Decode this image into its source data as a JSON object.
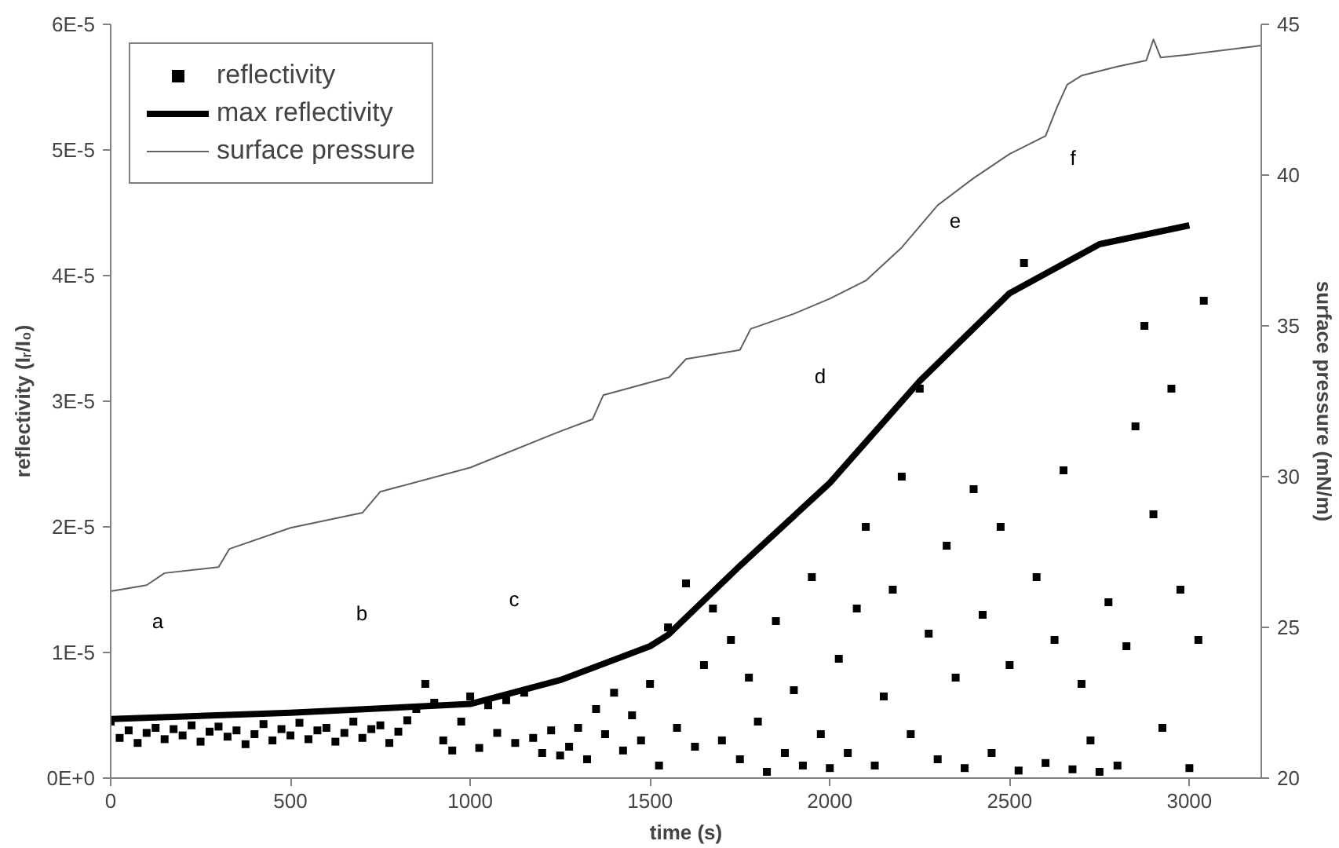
{
  "chart_data": {
    "type": "scatter",
    "xlabel": "time (s)",
    "ylabel": "reflectivity (Iᵣ/I₀)",
    "y2label": "surface pressure (mN/m)",
    "xlim": [
      0,
      3200
    ],
    "xticks": [
      0,
      500,
      1000,
      1500,
      2000,
      2500,
      3000
    ],
    "ylim": [
      0,
      6e-05
    ],
    "yticks": [
      {
        "value": 0,
        "label": "0E+0"
      },
      {
        "value": 1e-05,
        "label": "1E-5"
      },
      {
        "value": 2e-05,
        "label": "2E-5"
      },
      {
        "value": 3e-05,
        "label": "3E-5"
      },
      {
        "value": 4e-05,
        "label": "4E-5"
      },
      {
        "value": 5e-05,
        "label": "5E-5"
      },
      {
        "value": 6e-05,
        "label": "6E-5"
      }
    ],
    "y2lim": [
      20,
      45
    ],
    "y2ticks": [
      20,
      25,
      30,
      35,
      40,
      45
    ],
    "grid": false,
    "legend": "top left",
    "series": [
      {
        "name": "reflectivity",
        "marker": "square",
        "color": "#000000",
        "x": [
          0,
          25,
          50,
          75,
          100,
          125,
          150,
          175,
          200,
          225,
          250,
          275,
          300,
          325,
          350,
          375,
          400,
          425,
          450,
          475,
          500,
          525,
          550,
          575,
          600,
          625,
          650,
          675,
          700,
          725,
          750,
          775,
          800,
          825,
          850,
          875,
          900,
          925,
          950,
          975,
          1000,
          1025,
          1050,
          1075,
          1100,
          1125,
          1150,
          1175,
          1200,
          1225,
          1250,
          1275,
          1300,
          1325,
          1350,
          1375,
          1400,
          1425,
          1450,
          1475,
          1500,
          1525,
          1550,
          1575,
          1600,
          1625,
          1650,
          1675,
          1700,
          1725,
          1750,
          1775,
          1800,
          1825,
          1850,
          1875,
          1900,
          1925,
          1950,
          1975,
          2000,
          2025,
          2050,
          2075,
          2100,
          2125,
          2150,
          2175,
          2200,
          2225,
          2250,
          2275,
          2300,
          2325,
          2350,
          2375,
          2400,
          2425,
          2450,
          2475,
          2500,
          2525,
          2540,
          2575,
          2600,
          2625,
          2650,
          2675,
          2700,
          2725,
          2750,
          2775,
          2800,
          2825,
          2850,
          2875,
          2900,
          2925,
          2950,
          2975,
          3000,
          3025,
          3040
        ],
        "values": [
          4.5e-06,
          3.2e-06,
          3.8e-06,
          2.8e-06,
          3.6e-06,
          4e-06,
          3.1e-06,
          3.9e-06,
          3.4e-06,
          4.2e-06,
          2.9e-06,
          3.7e-06,
          4.1e-06,
          3.3e-06,
          3.8e-06,
          2.7e-06,
          3.5e-06,
          4.3e-06,
          3e-06,
          3.9e-06,
          3.4e-06,
          4.4e-06,
          3.1e-06,
          3.8e-06,
          4e-06,
          2.9e-06,
          3.6e-06,
          4.5e-06,
          3.2e-06,
          3.9e-06,
          4.2e-06,
          2.8e-06,
          3.7e-06,
          4.6e-06,
          5.5e-06,
          7.5e-06,
          6e-06,
          3e-06,
          2.2e-06,
          4.5e-06,
          6.5e-06,
          2.4e-06,
          5.8e-06,
          3.6e-06,
          6.2e-06,
          2.8e-06,
          6.8e-06,
          3.2e-06,
          2e-06,
          3.8e-06,
          1.8e-06,
          2.5e-06,
          4e-06,
          1.5e-06,
          5.5e-06,
          3.5e-06,
          6.8e-06,
          2.2e-06,
          5e-06,
          3e-06,
          7.5e-06,
          1e-06,
          1.2e-05,
          4e-06,
          1.55e-05,
          2.5e-06,
          9e-06,
          1.35e-05,
          3e-06,
          1.1e-05,
          1.5e-06,
          8e-06,
          4.5e-06,
          5e-07,
          1.25e-05,
          2e-06,
          7e-06,
          1e-06,
          1.6e-05,
          3.5e-06,
          8e-07,
          9.5e-06,
          2e-06,
          1.35e-05,
          2e-05,
          1e-06,
          6.5e-06,
          1.5e-05,
          2.4e-05,
          3.5e-06,
          3.1e-05,
          1.15e-05,
          1.5e-06,
          1.85e-05,
          8e-06,
          8e-07,
          2.3e-05,
          1.3e-05,
          2e-06,
          2e-05,
          9e-06,
          6e-07,
          4.1e-05,
          1.6e-05,
          1.2e-06,
          1.1e-05,
          2.45e-05,
          7e-07,
          7.5e-06,
          3e-06,
          5e-07,
          1.4e-05,
          1e-06,
          1.05e-05,
          2.8e-05,
          3.6e-05,
          2.1e-05,
          4e-06,
          3.1e-05,
          1.5e-05,
          8e-07,
          1.1e-05,
          3.8e-05
        ]
      },
      {
        "name": "max reflectivity",
        "type": "line",
        "color": "#000000",
        "x": [
          0,
          500,
          1000,
          1250,
          1500,
          1550,
          1750,
          2000,
          2250,
          2500,
          2750,
          3000
        ],
        "values": [
          4.7e-06,
          5.2e-06,
          5.9e-06,
          7.8e-06,
          1.05e-05,
          1.14e-05,
          1.69e-05,
          2.35e-05,
          3.16e-05,
          3.86e-05,
          4.25e-05,
          4.4e-05
        ]
      },
      {
        "name": "surface pressure",
        "type": "line",
        "axis": "y2",
        "color": "#606060",
        "x": [
          0,
          100,
          150,
          300,
          330,
          500,
          700,
          750,
          1000,
          1250,
          1340,
          1370,
          1554,
          1600,
          1750,
          1780,
          1900,
          2000,
          2100,
          2200,
          2300,
          2400,
          2500,
          2600,
          2630,
          2660,
          2700,
          2800,
          2880,
          2900,
          2920,
          3000,
          3200
        ],
        "values": [
          26.2,
          26.4,
          26.8,
          27.0,
          27.6,
          28.3,
          28.8,
          29.5,
          30.3,
          31.5,
          31.9,
          32.7,
          33.3,
          33.9,
          34.2,
          34.9,
          35.4,
          35.9,
          36.5,
          37.6,
          39.0,
          39.9,
          40.7,
          41.3,
          42.2,
          43.0,
          43.3,
          43.6,
          43.8,
          44.5,
          43.9,
          44.0,
          44.3
        ]
      }
    ],
    "annotations": [
      "a",
      "b",
      "c",
      "d",
      "e",
      "f"
    ]
  }
}
